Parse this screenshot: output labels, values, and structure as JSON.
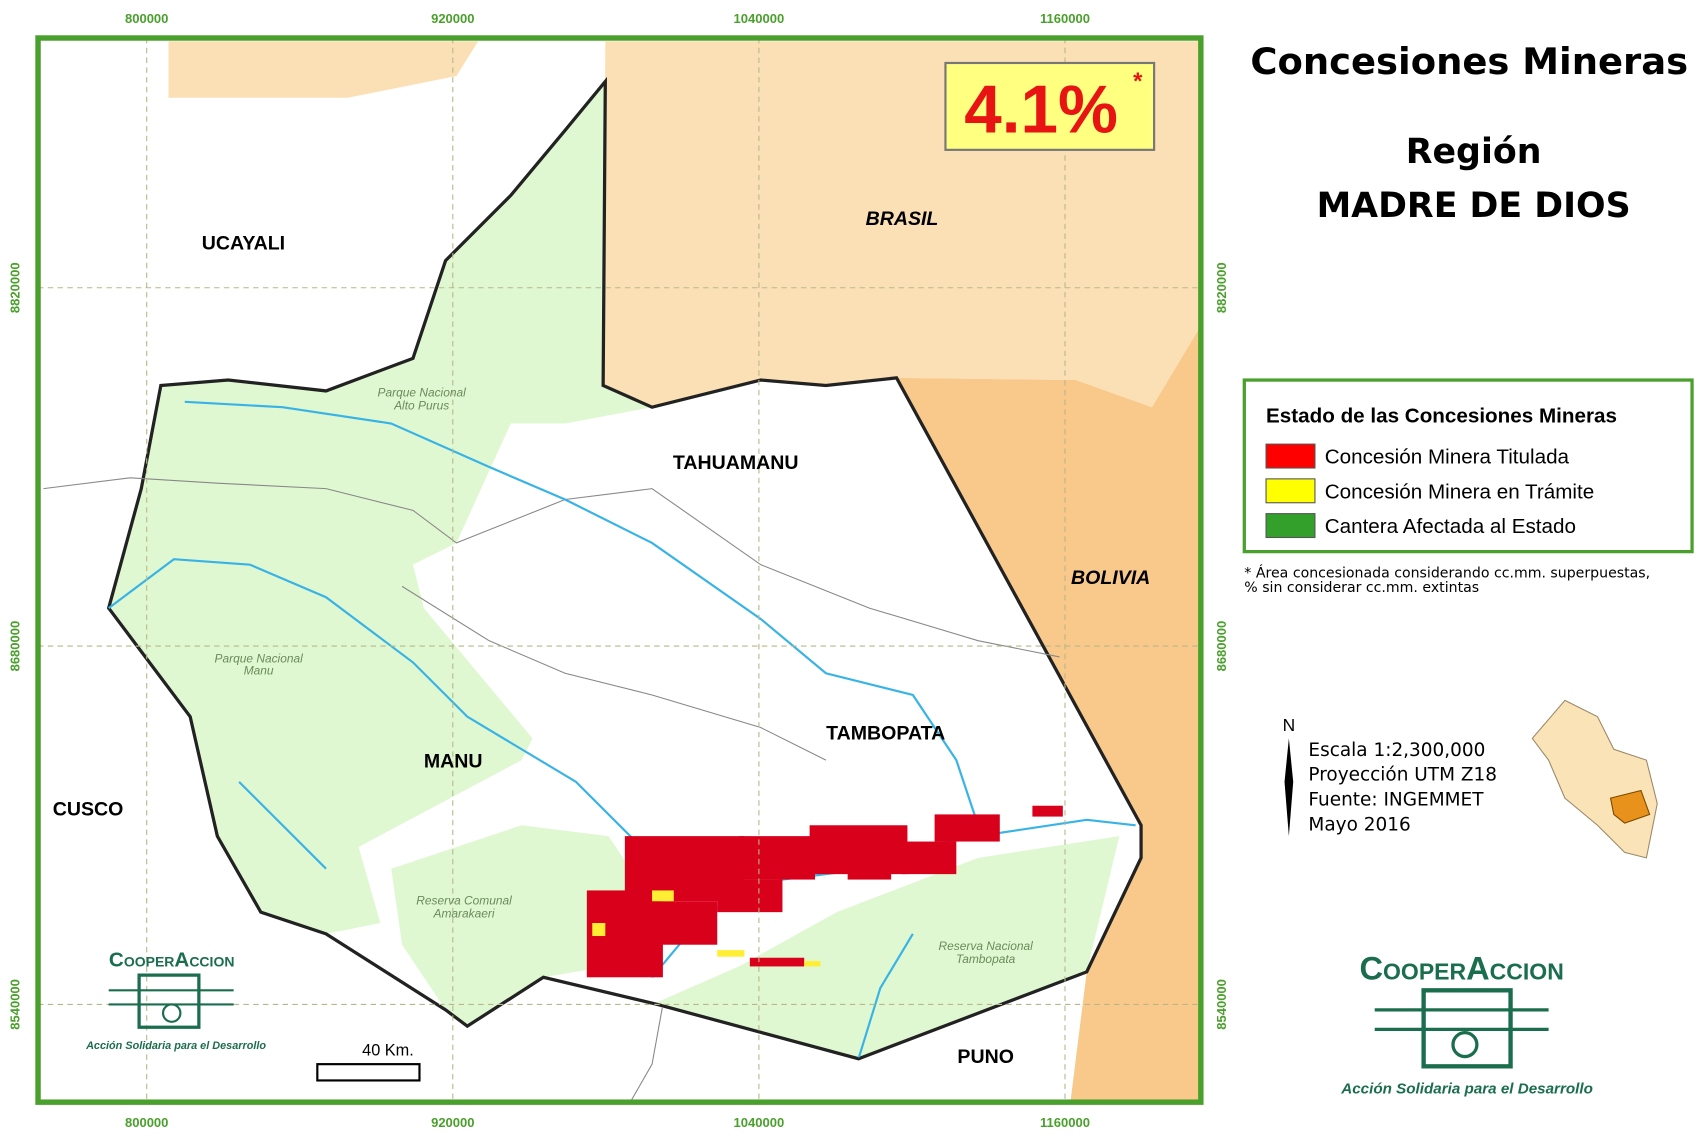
{
  "title": "Concesiones Mineras",
  "subtitle": "Región",
  "region": "MADRE DE DIOS",
  "percentage": {
    "value": "4.1%",
    "mark": "*"
  },
  "map_labels": {
    "ucayali": "UCAYALI",
    "brasil": "BRASIL",
    "bolivia": "BOLIVIA",
    "tahuamanu": "TAHUAMANU",
    "tambopata": "TAMBOPATA",
    "manu": "MANU",
    "cusco": "CUSCO",
    "puno": "PUNO"
  },
  "protected_areas": [
    [
      "Parque Nacional",
      "Alto Purus"
    ],
    [
      "Parque Nacional",
      "Manu"
    ],
    [
      "Reserva Comunal",
      "Amarakaeri"
    ],
    [
      "Reserva Nacional",
      "Tambopata"
    ]
  ],
  "grid": {
    "x_ticks": [
      800000,
      920000,
      1040000,
      1160000
    ],
    "y_ticks": [
      8820000,
      8680000,
      8540000
    ]
  },
  "legend": {
    "title": "Estado de las Concesiones Mineras",
    "items": [
      {
        "label": "Concesión Minera Titulada",
        "color": "#ff0000"
      },
      {
        "label": "Concesión Minera en Trámite",
        "color": "#ffff00"
      },
      {
        "label": "Cantera Afectada al Estado",
        "color": "#33a02c"
      }
    ]
  },
  "note": [
    "* Área concesionada considerando cc.mm. superpuestas,",
    "% sin considerar cc.mm. extintas"
  ],
  "scale_bar": "40 Km.",
  "north": "N",
  "info": [
    "Escala 1:2,300,000",
    "Proyección UTM Z18",
    "Fuente: INGEMMET",
    "Mayo 2016"
  ],
  "logo": {
    "name": "CooperAccion",
    "tagline": "Acción Solidaria para el Desarrollo"
  }
}
